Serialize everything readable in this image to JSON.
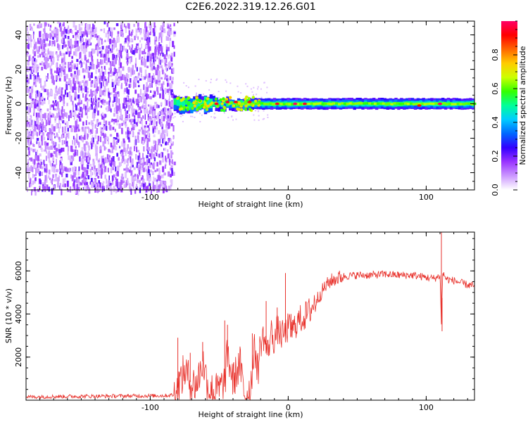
{
  "title": "C2E6.2022.319.12.26.G01",
  "chart_data": [
    {
      "type": "heatmap",
      "xlabel": "Height of straight line (km)",
      "ylabel": "Frequency (Hz)",
      "xlim": [
        -190,
        135
      ],
      "ylim": [
        -50,
        48
      ],
      "x_ticks": [
        -100,
        0,
        100
      ],
      "x_tick_labels": [
        "-100",
        "0",
        "100"
      ],
      "y_ticks": [
        -40,
        -20,
        0,
        20,
        40
      ],
      "y_tick_labels": [
        "-40",
        "-20",
        "0",
        "20",
        "40"
      ],
      "grid": false,
      "description_regions": [
        {
          "x_range": [
            -190,
            -83
          ],
          "y_range": [
            -50,
            48
          ],
          "level": 0.05,
          "kind": "noise"
        },
        {
          "x_range": [
            -83,
            -60
          ],
          "y_range": [
            -7,
            6
          ],
          "level": 0.4,
          "kind": "signal-broad"
        },
        {
          "x_range": [
            -60,
            -20
          ],
          "y_range": [
            -4,
            4
          ],
          "level": 0.45,
          "kind": "signal"
        },
        {
          "x_range": [
            -20,
            135
          ],
          "y_range": [
            -2.5,
            2.5
          ],
          "level": 0.55,
          "kind": "signal-core"
        }
      ],
      "peak_points": [
        {
          "x": -52,
          "y": 0,
          "v": 0.95
        },
        {
          "x": -44,
          "y": 1,
          "v": 0.95
        },
        {
          "x": -38,
          "y": 1,
          "v": 0.9
        },
        {
          "x": -28,
          "y": 1,
          "v": 0.9
        },
        {
          "x": -8,
          "y": 0,
          "v": 0.95
        },
        {
          "x": 5,
          "y": 0,
          "v": 1.0
        },
        {
          "x": 12,
          "y": 0,
          "v": 0.95
        },
        {
          "x": 95,
          "y": -1,
          "v": 0.9
        },
        {
          "x": 110,
          "y": 0,
          "v": 1.0
        }
      ],
      "colorbar": {
        "label": "Normalized spectral amplitude",
        "range": [
          0,
          1
        ],
        "ticks": [
          0.0,
          0.2,
          0.4,
          0.6,
          0.8
        ],
        "tick_labels": [
          "0.0",
          "0.2",
          "0.4",
          "0.6",
          "0.8"
        ],
        "colors": [
          "#ffffff",
          "#cc99ff",
          "#9933ff",
          "#3300ff",
          "#0066ff",
          "#00ccff",
          "#00ff99",
          "#33ff00",
          "#ccff00",
          "#ffcc00",
          "#ff6600",
          "#ff0000",
          "#ff0066"
        ]
      }
    },
    {
      "type": "line",
      "xlabel": "Height of straight line (km)",
      "ylabel": "SNR (10 * v/v)",
      "xlim": [
        -190,
        135
      ],
      "ylim": [
        0,
        7800
      ],
      "x_ticks": [
        -100,
        0,
        100
      ],
      "x_tick_labels": [
        "-100",
        "0",
        "100"
      ],
      "y_ticks": [
        2000,
        4000,
        6000
      ],
      "y_tick_labels": [
        "2000",
        "4000",
        "6000"
      ],
      "grid": false,
      "color": "#e8302a",
      "series": [
        {
          "x": [
            -190,
            -170,
            -150,
            -130,
            -110,
            -90,
            -82,
            -78,
            -75,
            -70,
            -66,
            -62,
            -58,
            -54,
            -50,
            -46,
            -44,
            -42,
            -40,
            -38,
            -35,
            -32,
            -30,
            -28,
            -26,
            -24,
            -22,
            -20,
            -18,
            -15,
            -12,
            -10,
            -8,
            -5,
            -2,
            0,
            3,
            6,
            10,
            14,
            18,
            22,
            26,
            30,
            35,
            40,
            50,
            60,
            70,
            80,
            90,
            100,
            105,
            108,
            110,
            111,
            112,
            115,
            120,
            125,
            130,
            135
          ],
          "y": [
            150,
            170,
            180,
            190,
            200,
            210,
            250,
            900,
            1400,
            700,
            800,
            1800,
            600,
            350,
            500,
            800,
            2200,
            1500,
            900,
            1200,
            1700,
            300,
            200,
            400,
            1500,
            2400,
            1400,
            2600,
            3000,
            2200,
            3200,
            2700,
            3300,
            3000,
            3100,
            3400,
            3200,
            3600,
            3800,
            4000,
            4400,
            4800,
            5200,
            5500,
            5650,
            5750,
            5800,
            5800,
            5850,
            5800,
            5800,
            5700,
            5650,
            5700,
            5800,
            3600,
            5900,
            5600,
            5550,
            5450,
            5350,
            5300
          ]
        }
      ],
      "spikes": [
        {
          "x": -80,
          "y": 2900
        },
        {
          "x": -71,
          "y": 2200
        },
        {
          "x": -62,
          "y": 2700
        },
        {
          "x": -46,
          "y": 3700
        },
        {
          "x": -44,
          "y": 3500
        },
        {
          "x": -26,
          "y": 3100
        },
        {
          "x": -16,
          "y": 4600
        },
        {
          "x": -8,
          "y": 4300
        },
        {
          "x": -2,
          "y": 5900
        },
        {
          "x": 2,
          "y": 4000
        },
        {
          "x": 111,
          "y": 7800
        },
        {
          "x": 111.5,
          "y": 3200
        }
      ]
    }
  ]
}
